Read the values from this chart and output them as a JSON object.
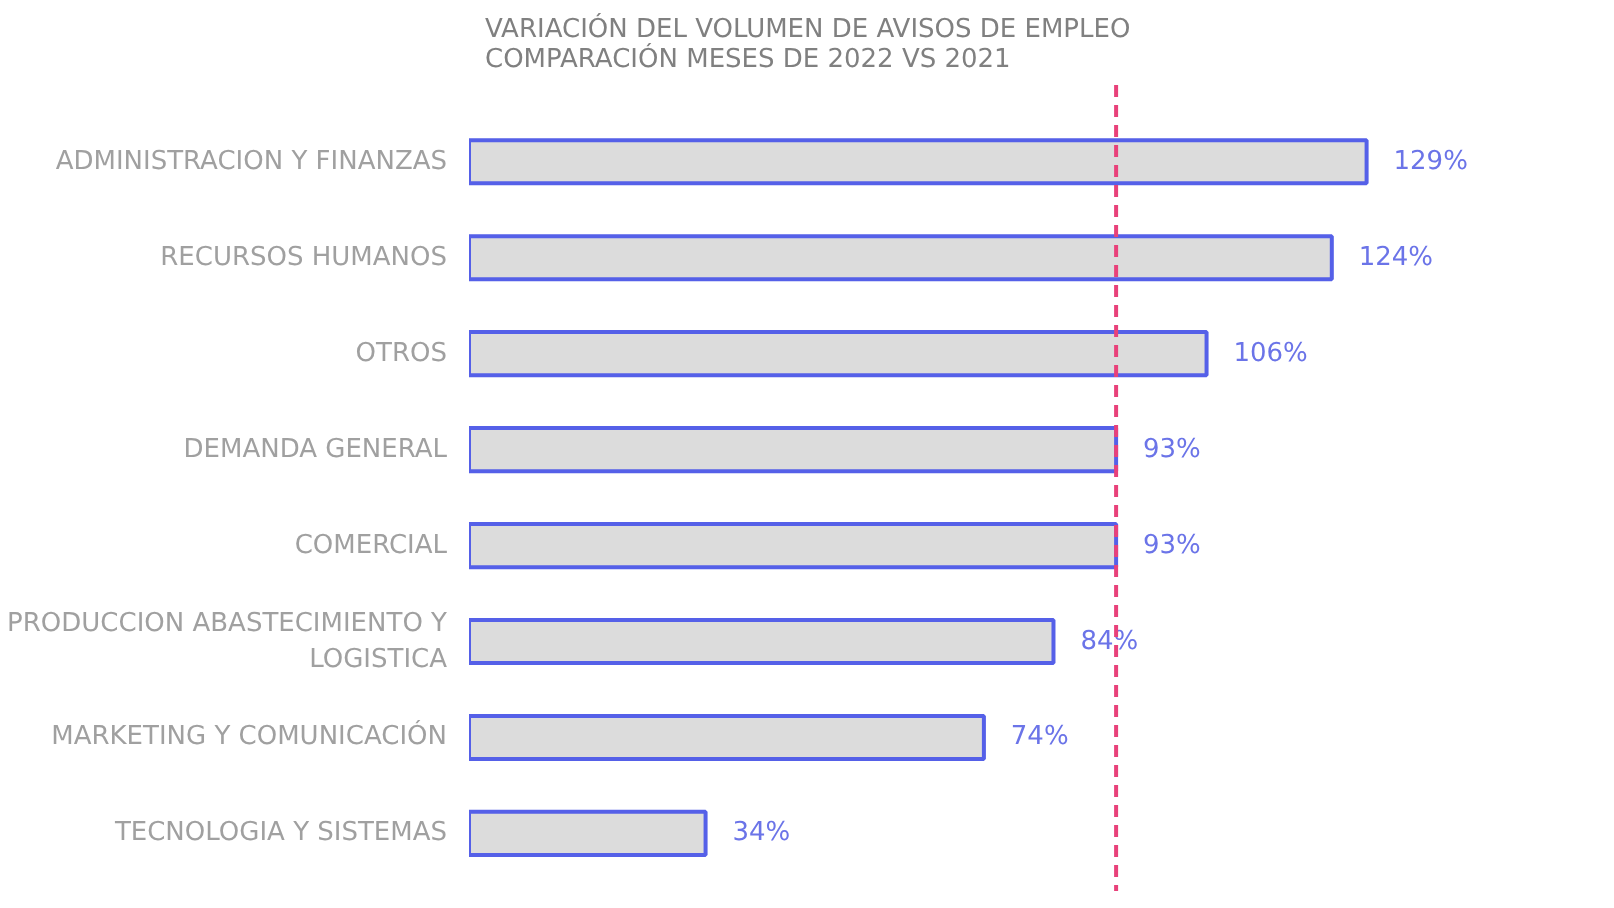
{
  "chart_data": {
    "type": "bar",
    "orientation": "horizontal",
    "title": "VARIACIÓN DEL VOLUMEN DE AVISOS DE EMPLEO\nCOMPARACIÓN MESES DE 2022 VS 2021",
    "categories": [
      "ADMINISTRACION Y FINANZAS",
      "RECURSOS HUMANOS",
      "OTROS",
      "DEMANDA GENERAL",
      "COMERCIAL",
      "PRODUCCION ABASTECIMIENTO Y\nLOGISTICA",
      "MARKETING Y COMUNICACIÓN",
      "TECNOLOGIA Y SISTEMAS"
    ],
    "color": "#dcdcdc",
    "values": [
      129,
      124,
      106,
      93,
      93,
      84,
      74,
      34
    ],
    "value_labels": [
      "129%",
      "124%",
      "106%",
      "93%",
      "93%",
      "84%",
      "74%",
      "34%"
    ],
    "ref_lines": [
      {
        "axis": "x",
        "value": 93,
        "color": "#e8417a",
        "line_style": "dashed"
      }
    ],
    "tick_labels": "y"
  }
}
